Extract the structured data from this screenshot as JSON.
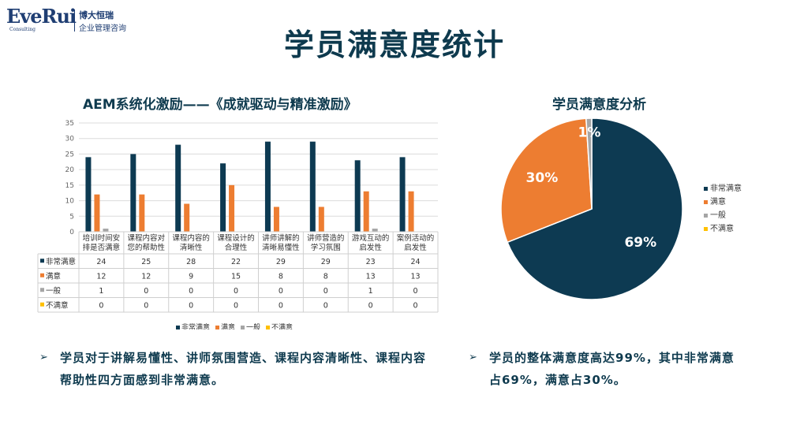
{
  "logo": {
    "mark": "EveRui",
    "sub": "Consulting",
    "cn_line1": "博大恒瑞",
    "cn_line2": "企业管理咨询"
  },
  "page_title": "学员满意度统计",
  "colors": {
    "very_satisfied": "#0d3a52",
    "satisfied": "#ed7d31",
    "neutral": "#a5a5a5",
    "dissatisfied": "#ffc000"
  },
  "bar_chart_data": {
    "type": "bar",
    "title": "AEM系统化激励——《成就驱动与精准激励》",
    "categories": [
      "培训时间安排是否满意",
      "课程内容对您的帮助性",
      "课程内容的清晰性",
      "课程设计的合理性",
      "讲师讲解的清晰易懂性",
      "讲师营造的学习氛围",
      "游戏互动的启发性",
      "案例活动的启发性"
    ],
    "category_lines": [
      [
        "培训时间安",
        "排是否满意"
      ],
      [
        "课程内容对",
        "您的帮助性"
      ],
      [
        "课程内容的",
        "清晰性"
      ],
      [
        "课程设计的",
        "合理性"
      ],
      [
        "讲师讲解的",
        "清晰易懂性"
      ],
      [
        "讲师营造的",
        "学习氛围"
      ],
      [
        "游戏互动的",
        "启发性"
      ],
      [
        "案例活动的",
        "启发性"
      ]
    ],
    "series": [
      {
        "name": "非常满意",
        "values": [
          24,
          25,
          28,
          22,
          29,
          29,
          23,
          24
        ]
      },
      {
        "name": "满意",
        "values": [
          12,
          12,
          9,
          15,
          8,
          8,
          13,
          13
        ]
      },
      {
        "name": "一般",
        "values": [
          1,
          0,
          0,
          0,
          0,
          0,
          1,
          0
        ]
      },
      {
        "name": "不满意",
        "values": [
          0,
          0,
          0,
          0,
          0,
          0,
          0,
          0
        ]
      }
    ],
    "ylim": [
      0,
      35
    ],
    "yticks": [
      0,
      5,
      10,
      15,
      20,
      25,
      30,
      35
    ],
    "grid": true,
    "legend": "bottom"
  },
  "pie_chart_data": {
    "type": "pie",
    "title": "学员满意度分析",
    "slices": [
      {
        "name": "非常满意",
        "value": 69,
        "label": "69%"
      },
      {
        "name": "满意",
        "value": 30,
        "label": "30%"
      },
      {
        "name": "一般",
        "value": 1,
        "label": "1%"
      },
      {
        "name": "不满意",
        "value": 0,
        "label": ""
      }
    ],
    "legend": "right"
  },
  "bullets": {
    "left_line1": "学员对于讲解易懂性、讲师氛围营造、课程内容清晰性、课程内容",
    "left_line2": "帮助性四方面感到非常满意。",
    "right_line1": "学员的整体满意度高达99%，其中非常满意",
    "right_line2": "占69%，满意占30%。",
    "arrow": "➢"
  }
}
